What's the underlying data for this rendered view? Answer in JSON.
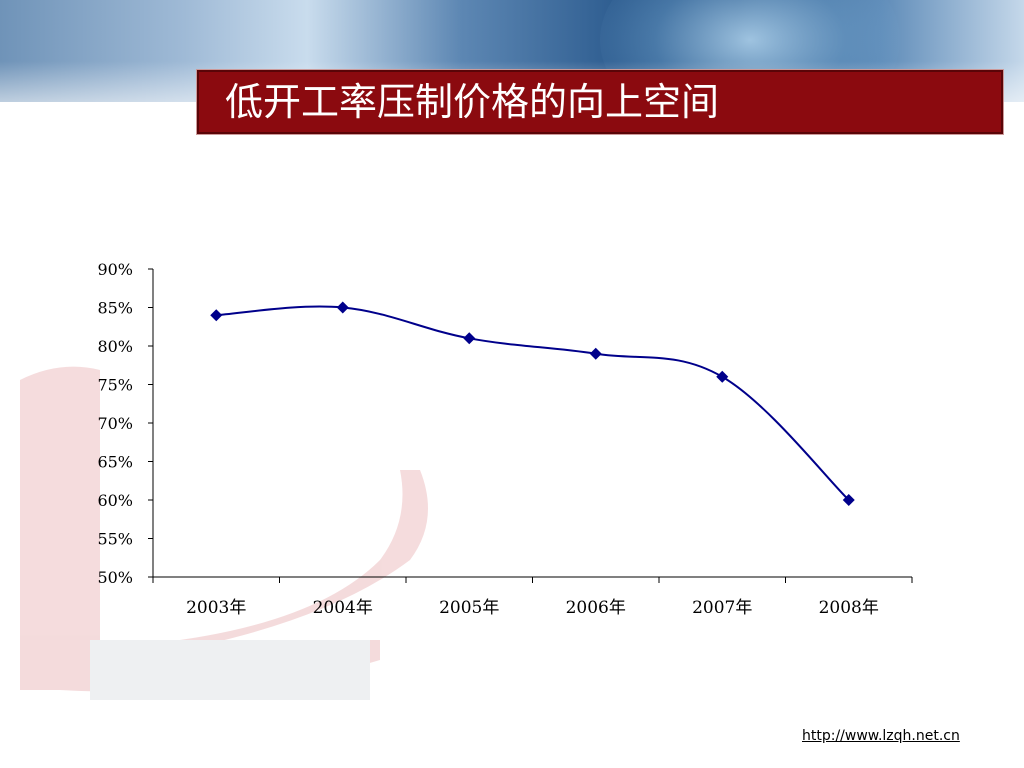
{
  "title": "低开工率压制价格的向上空间",
  "footer": {
    "url": "http://www.lzqh.net.cn"
  },
  "colors": {
    "title_bg": "#8b0a0f",
    "line": "#00008b",
    "marker": "#00008b"
  },
  "chart_data": {
    "type": "line",
    "categories": [
      "2003年",
      "2004年",
      "2005年",
      "2006年",
      "2007年",
      "2008年"
    ],
    "series": [
      {
        "values": [
          84,
          85,
          81,
          79,
          76,
          60
        ]
      }
    ],
    "yticks": [
      "90%",
      "85%",
      "80%",
      "75%",
      "70%",
      "65%",
      "60%",
      "55%",
      "50%"
    ],
    "ylim": [
      50,
      90
    ],
    "smooth": true,
    "grid": false,
    "legend": "none"
  }
}
